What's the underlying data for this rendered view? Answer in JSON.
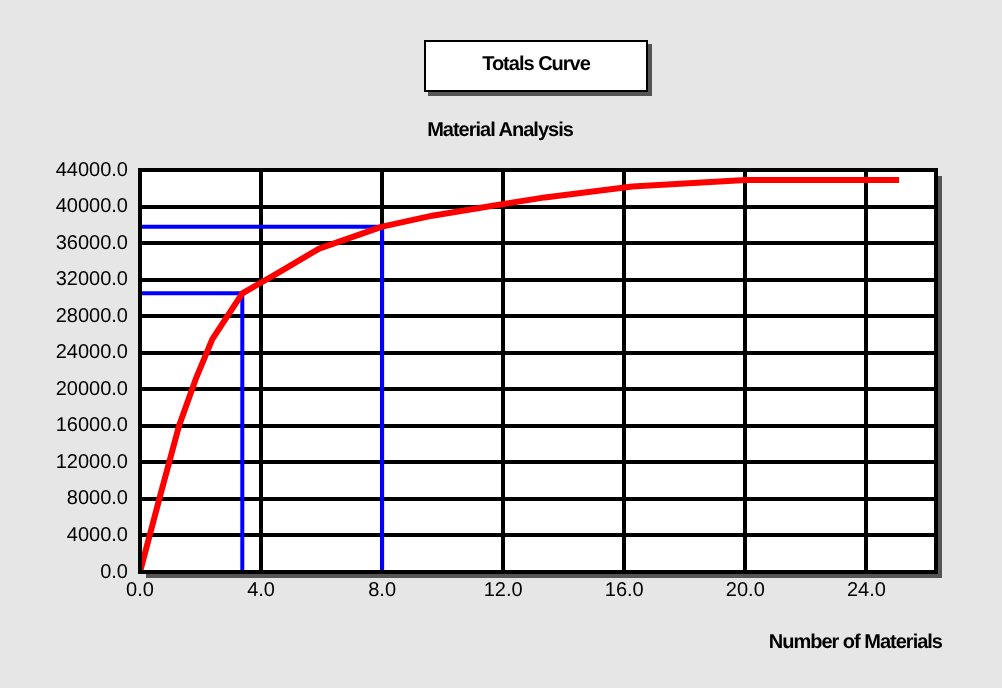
{
  "chart_data": {
    "type": "line",
    "title": "Totals Curve",
    "subtitle": "Material Analysis",
    "xlabel": "Number of Materials",
    "xlim": [
      0,
      26.3
    ],
    "ylim": [
      0,
      44000
    ],
    "xticks": [
      {
        "value": 0,
        "label": "0.0"
      },
      {
        "value": 4,
        "label": "4.0"
      },
      {
        "value": 8,
        "label": "8.0"
      },
      {
        "value": 12,
        "label": "12.0"
      },
      {
        "value": 16,
        "label": "16.0"
      },
      {
        "value": 20,
        "label": "20.0"
      },
      {
        "value": 24,
        "label": "24.0"
      }
    ],
    "yticks": [
      {
        "value": 0,
        "label": "0.0"
      },
      {
        "value": 4000,
        "label": "4000.0"
      },
      {
        "value": 8000,
        "label": "8000.0"
      },
      {
        "value": 12000,
        "label": "12000.0"
      },
      {
        "value": 16000,
        "label": "16000.0"
      },
      {
        "value": 20000,
        "label": "20000.0"
      },
      {
        "value": 24000,
        "label": "24000.0"
      },
      {
        "value": 28000,
        "label": "28000.0"
      },
      {
        "value": 32000,
        "label": "32000.0"
      },
      {
        "value": 36000,
        "label": "36000.0"
      },
      {
        "value": 40000,
        "label": "40000.0"
      },
      {
        "value": 44000,
        "label": "44000.0"
      }
    ],
    "grid": true,
    "marker": "none",
    "line_style": "solid",
    "series": [
      {
        "color": "#ff0000",
        "x": [
          0,
          0.63,
          1.29,
          1.84,
          2.39,
          3.38,
          4.59,
          5.92,
          8,
          9.66,
          11.86,
          13.38,
          16.27,
          20,
          25.08
        ],
        "values": [
          0,
          7900,
          16000,
          21100,
          25500,
          30500,
          32800,
          35400,
          37800,
          39000,
          40200,
          41000,
          42200,
          42900,
          42900
        ]
      },
      {
        "color": "#0000ff",
        "x": [
          0,
          3.38,
          3.38
        ],
        "values": [
          30500,
          30500,
          0
        ]
      },
      {
        "color": "#0000ff",
        "x": [
          0,
          8,
          8
        ],
        "values": [
          37800,
          37800,
          0
        ]
      }
    ]
  }
}
